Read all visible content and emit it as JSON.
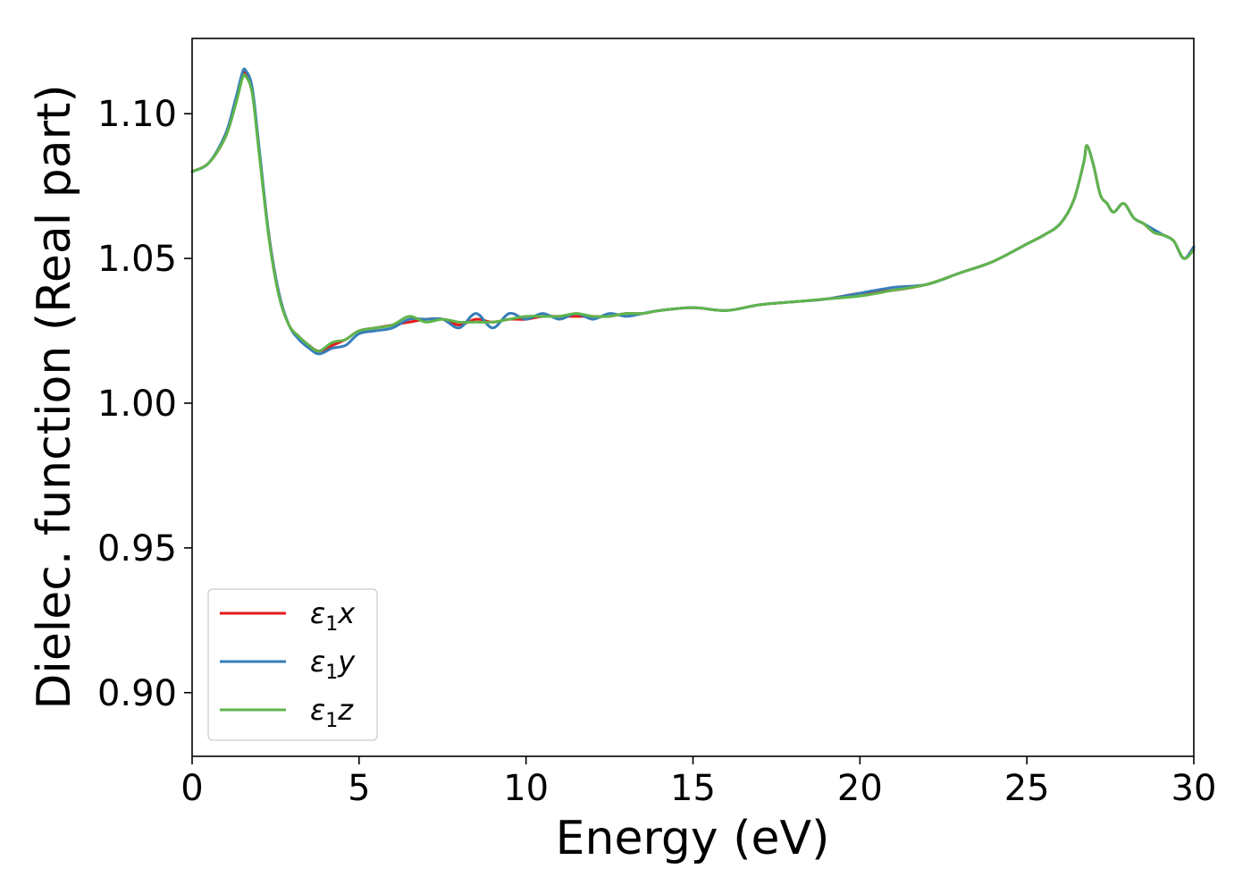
{
  "chart_data": {
    "type": "line",
    "xlabel": "Energy (eV)",
    "ylabel": "Dielec. function (Real part)",
    "xlim": [
      0,
      30
    ],
    "ylim": [
      0.878,
      1.126
    ],
    "xticks": [
      0,
      5,
      10,
      15,
      20,
      25,
      30
    ],
    "xtick_labels": [
      "0",
      "5",
      "10",
      "15",
      "20",
      "25",
      "30"
    ],
    "yticks": [
      0.9,
      0.95,
      1.0,
      1.05,
      1.1
    ],
    "ytick_labels": [
      "0.90",
      "0.95",
      "1.00",
      "1.05",
      "1.10"
    ],
    "grid": false,
    "legend_position": "lower-left",
    "series": [
      {
        "name": "ε1x",
        "legend_base": "ε",
        "legend_sub": "1",
        "legend_var": "x",
        "color": "#e41a1c",
        "x": [
          0,
          0.5,
          1.0,
          1.3,
          1.5,
          1.6,
          1.8,
          2.0,
          2.3,
          2.6,
          2.9,
          3.2,
          3.5,
          3.8,
          4.2,
          4.6,
          5.0,
          5.5,
          6.0,
          6.5,
          7.0,
          7.5,
          8.0,
          8.5,
          9.0,
          9.5,
          10.0,
          10.5,
          11.0,
          11.5,
          12.0,
          12.5,
          13.0,
          13.5,
          14.0,
          15.0,
          16.0,
          17.0,
          18.0,
          19.0,
          20.0,
          21.0,
          22.0,
          23.0,
          24.0,
          25.0,
          25.5,
          26.0,
          26.4,
          26.7,
          26.8,
          27.0,
          27.2,
          27.4,
          27.6,
          27.9,
          28.2,
          28.5,
          28.8,
          29.1,
          29.4,
          29.7,
          30.0
        ],
        "y": [
          1.08,
          1.083,
          1.092,
          1.104,
          1.113,
          1.114,
          1.108,
          1.088,
          1.058,
          1.038,
          1.027,
          1.023,
          1.02,
          1.018,
          1.02,
          1.022,
          1.025,
          1.026,
          1.027,
          1.028,
          1.029,
          1.029,
          1.027,
          1.029,
          1.028,
          1.029,
          1.029,
          1.03,
          1.03,
          1.03,
          1.03,
          1.03,
          1.031,
          1.031,
          1.032,
          1.033,
          1.032,
          1.034,
          1.035,
          1.036,
          1.038,
          1.039,
          1.041,
          1.045,
          1.049,
          1.055,
          1.058,
          1.062,
          1.07,
          1.083,
          1.089,
          1.082,
          1.072,
          1.069,
          1.066,
          1.069,
          1.064,
          1.062,
          1.059,
          1.058,
          1.056,
          1.05,
          1.054
        ]
      },
      {
        "name": "ε1y",
        "legend_base": "ε",
        "legend_sub": "1",
        "legend_var": "y",
        "color": "#377eb8",
        "x": [
          0,
          0.5,
          1.0,
          1.3,
          1.5,
          1.6,
          1.8,
          2.0,
          2.3,
          2.6,
          2.9,
          3.2,
          3.5,
          3.8,
          4.2,
          4.6,
          5.0,
          5.5,
          6.0,
          6.5,
          7.0,
          7.5,
          8.0,
          8.5,
          9.0,
          9.5,
          10.0,
          10.5,
          11.0,
          11.5,
          12.0,
          12.5,
          13.0,
          13.5,
          14.0,
          15.0,
          16.0,
          17.0,
          18.0,
          19.0,
          20.0,
          21.0,
          22.0,
          23.0,
          24.0,
          25.0,
          25.5,
          26.0,
          26.4,
          26.7,
          26.8,
          27.0,
          27.2,
          27.4,
          27.6,
          27.9,
          28.2,
          28.5,
          28.8,
          29.1,
          29.4,
          29.7,
          30.0
        ],
        "y": [
          1.08,
          1.083,
          1.093,
          1.105,
          1.114,
          1.115,
          1.109,
          1.089,
          1.058,
          1.038,
          1.027,
          1.022,
          1.019,
          1.017,
          1.019,
          1.02,
          1.024,
          1.025,
          1.026,
          1.029,
          1.029,
          1.029,
          1.026,
          1.031,
          1.026,
          1.031,
          1.029,
          1.031,
          1.029,
          1.031,
          1.029,
          1.031,
          1.03,
          1.031,
          1.032,
          1.033,
          1.032,
          1.034,
          1.035,
          1.036,
          1.038,
          1.04,
          1.041,
          1.045,
          1.049,
          1.055,
          1.058,
          1.062,
          1.07,
          1.083,
          1.089,
          1.082,
          1.072,
          1.069,
          1.066,
          1.069,
          1.064,
          1.062,
          1.06,
          1.058,
          1.056,
          1.05,
          1.054
        ]
      },
      {
        "name": "ε1z",
        "legend_base": "ε",
        "legend_sub": "1",
        "legend_var": "z",
        "color": "#5fb54c",
        "x": [
          0,
          0.5,
          1.0,
          1.3,
          1.5,
          1.6,
          1.8,
          2.0,
          2.3,
          2.6,
          2.9,
          3.2,
          3.5,
          3.8,
          4.2,
          4.6,
          5.0,
          5.5,
          6.0,
          6.5,
          7.0,
          7.5,
          8.0,
          8.5,
          9.0,
          9.5,
          10.0,
          10.5,
          11.0,
          11.5,
          12.0,
          12.5,
          13.0,
          13.5,
          14.0,
          15.0,
          16.0,
          17.0,
          18.0,
          19.0,
          20.0,
          21.0,
          22.0,
          23.0,
          24.0,
          25.0,
          25.5,
          26.0,
          26.4,
          26.7,
          26.8,
          27.0,
          27.2,
          27.4,
          27.6,
          27.9,
          28.2,
          28.5,
          28.8,
          29.1,
          29.4,
          29.7,
          30.0
        ],
        "y": [
          1.08,
          1.083,
          1.092,
          1.103,
          1.112,
          1.113,
          1.107,
          1.087,
          1.057,
          1.037,
          1.027,
          1.023,
          1.02,
          1.018,
          1.021,
          1.022,
          1.025,
          1.026,
          1.027,
          1.03,
          1.028,
          1.029,
          1.028,
          1.028,
          1.028,
          1.029,
          1.03,
          1.03,
          1.03,
          1.031,
          1.03,
          1.03,
          1.031,
          1.031,
          1.032,
          1.033,
          1.032,
          1.034,
          1.035,
          1.036,
          1.037,
          1.039,
          1.041,
          1.045,
          1.049,
          1.055,
          1.058,
          1.062,
          1.07,
          1.083,
          1.089,
          1.082,
          1.072,
          1.069,
          1.066,
          1.069,
          1.064,
          1.062,
          1.059,
          1.058,
          1.056,
          1.05,
          1.053
        ]
      }
    ]
  }
}
